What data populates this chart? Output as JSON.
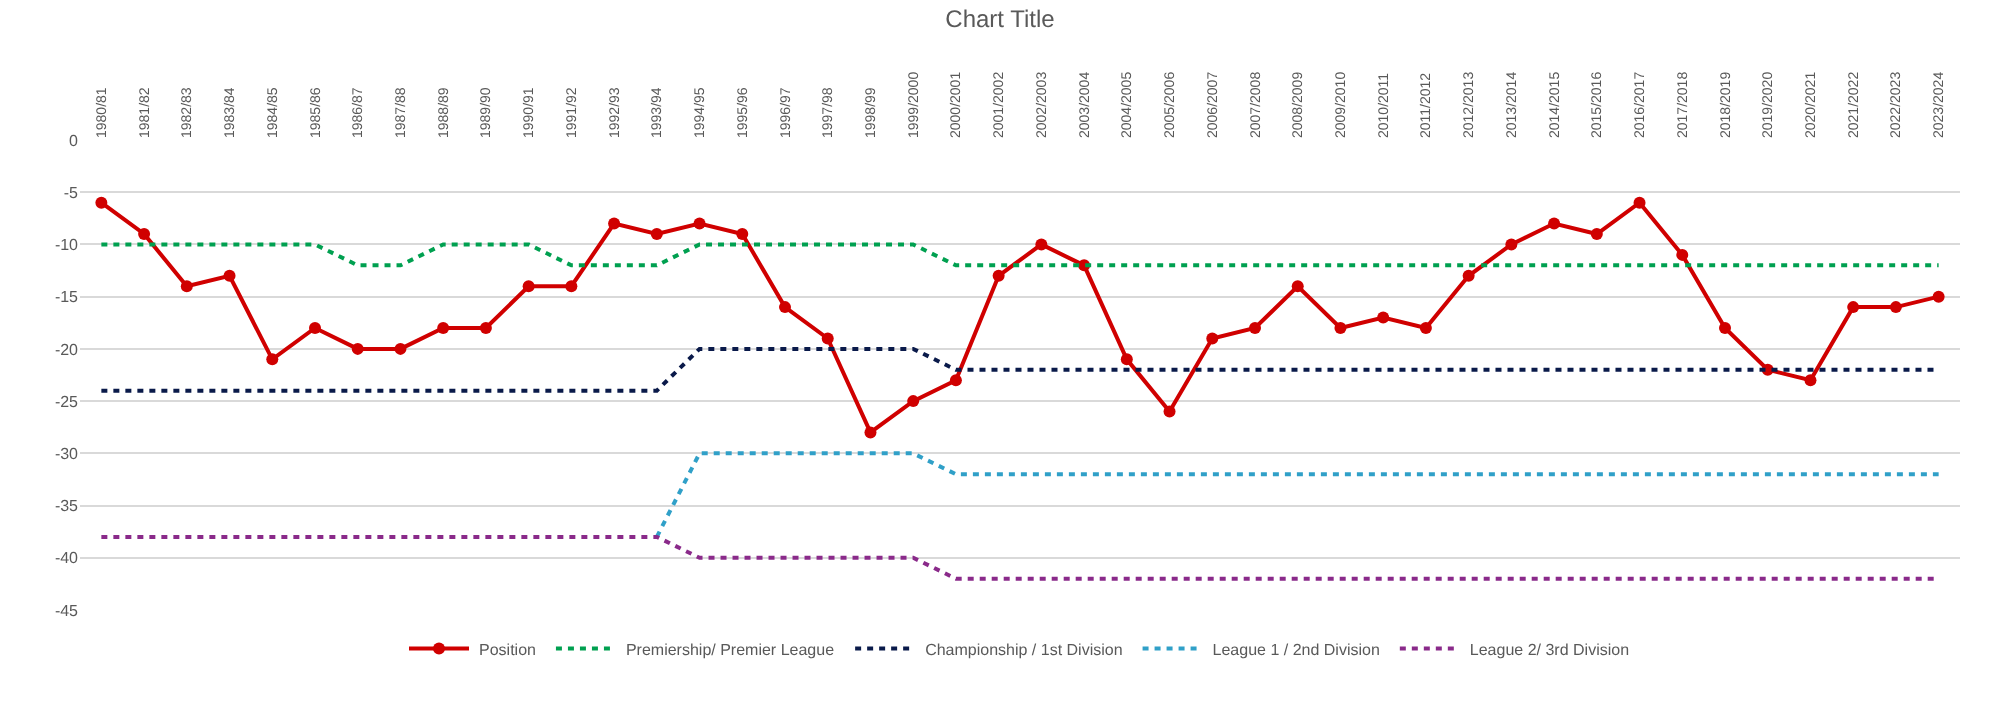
{
  "chart_data": {
    "type": "line",
    "title": "Chart Title",
    "categories": [
      "1980/81",
      "1981/82",
      "1982/83",
      "1983/84",
      "1984/85",
      "1985/86",
      "1986/87",
      "1987/88",
      "1988/89",
      "1989/90",
      "1990/91",
      "1991/92",
      "1992/93",
      "1993/94",
      "1994/95",
      "1995/96",
      "1996/97",
      "1997/98",
      "1998/99",
      "1999/2000",
      "2000/2001",
      "2001/2002",
      "2002/2003",
      "2003/2004",
      "2004/2005",
      "2005/2006",
      "2006/2007",
      "2007/2008",
      "2008/2009",
      "2009/2010",
      "2010/2011",
      "2011/2012",
      "2012/2013",
      "2013/2014",
      "2014/2015",
      "2015/2016",
      "2016/2017",
      "2017/2018",
      "2018/2019",
      "2019/2020",
      "2020/2021",
      "2021/2022",
      "2022/2023",
      "2023/2024"
    ],
    "series": [
      {
        "name": "Position",
        "color": "#d00000",
        "marker": "circle",
        "line_style": "solid",
        "values": [
          -6,
          -9,
          -14,
          -13,
          -21,
          -18,
          -20,
          -20,
          -18,
          -18,
          -14,
          -14,
          -8,
          -9,
          -8,
          -9,
          -16,
          -19,
          -28,
          -25,
          -23,
          -13,
          -10,
          -12,
          -21,
          -26,
          -19,
          -18,
          -14,
          -18,
          -17,
          -18,
          -13,
          -10,
          -8,
          -9,
          -6,
          -11,
          -18,
          -22,
          -23,
          -16,
          -16,
          -15
        ]
      },
      {
        "name": "Premiership/ Premier League",
        "color": "#00a050",
        "marker": "none",
        "line_style": "dotted",
        "values": [
          -10,
          -10,
          -10,
          -10,
          -10,
          -10,
          -12,
          -12,
          -10,
          -10,
          -10,
          -12,
          -12,
          -12,
          -10,
          -10,
          -10,
          -10,
          -10,
          -10,
          -12,
          -12,
          -12,
          -12,
          -12,
          -12,
          -12,
          -12,
          -12,
          -12,
          -12,
          -12,
          -12,
          -12,
          -12,
          -12,
          -12,
          -12,
          -12,
          -12,
          -12,
          -12,
          -12,
          -12
        ]
      },
      {
        "name": "Championship / 1st Division",
        "color": "#0a1a4a",
        "marker": "none",
        "line_style": "dotted",
        "values": [
          -24,
          -24,
          -24,
          -24,
          -24,
          -24,
          -24,
          -24,
          -24,
          -24,
          -24,
          -24,
          -24,
          -24,
          -20,
          -20,
          -20,
          -20,
          -20,
          -20,
          -22,
          -22,
          -22,
          -22,
          -22,
          -22,
          -22,
          -22,
          -22,
          -22,
          -22,
          -22,
          -22,
          -22,
          -22,
          -22,
          -22,
          -22,
          -22,
          -22,
          -22,
          -22,
          -22,
          -22
        ]
      },
      {
        "name": "League 1 / 2nd Division",
        "color": "#30a0c8",
        "marker": "none",
        "line_style": "dotted",
        "values": [
          null,
          null,
          null,
          null,
          null,
          null,
          null,
          null,
          null,
          null,
          null,
          null,
          null,
          -38,
          -30,
          -30,
          -30,
          -30,
          -30,
          -30,
          -32,
          -32,
          -32,
          -32,
          -32,
          -32,
          -32,
          -32,
          -32,
          -32,
          -32,
          -32,
          -32,
          -32,
          -32,
          -32,
          -32,
          -32,
          -32,
          -32,
          -32,
          -32,
          -32,
          -32
        ]
      },
      {
        "name": "League 2/ 3rd Division",
        "color": "#8a2a8a",
        "marker": "none",
        "line_style": "dotted",
        "values": [
          -38,
          -38,
          -38,
          -38,
          -38,
          -38,
          -38,
          -38,
          -38,
          -38,
          -38,
          -38,
          -38,
          -38,
          -40,
          -40,
          -40,
          -40,
          -40,
          -40,
          -42,
          -42,
          -42,
          -42,
          -42,
          -42,
          -42,
          -42,
          -42,
          -42,
          -42,
          -42,
          -42,
          -42,
          -42,
          -42,
          -42,
          -42,
          -42,
          -42,
          -42,
          -42,
          -42,
          -42
        ]
      }
    ],
    "ylim": [
      -45,
      0
    ],
    "yticks": [
      -45,
      -40,
      -35,
      -30,
      -25,
      -20,
      -15,
      -10,
      -5,
      0
    ],
    "grid": "y",
    "legend": "bottom"
  }
}
